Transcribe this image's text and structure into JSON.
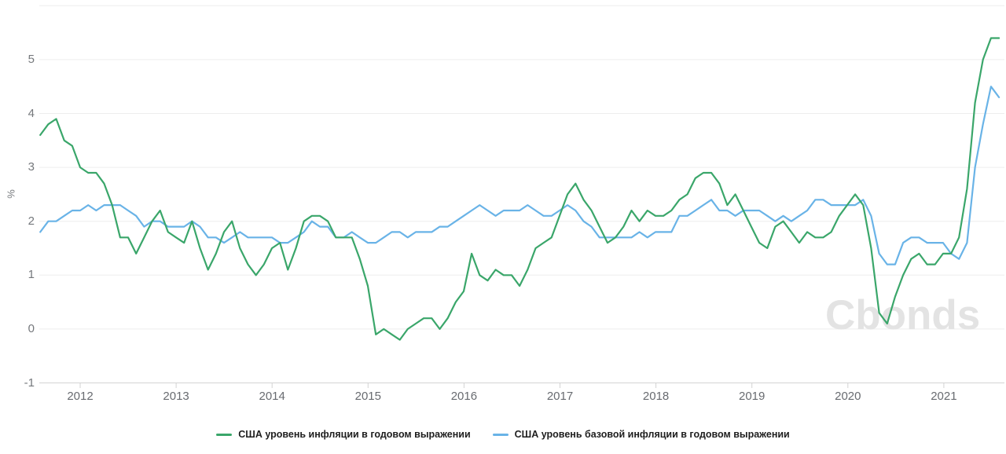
{
  "watermark": {
    "text": "Cbonds"
  },
  "legend": {
    "items": [
      {
        "label": "США уровень инфляции в годовом выражении",
        "color": "#3aa66a"
      },
      {
        "label": "США уровень базовой инфляции в годовом выражении",
        "color": "#69b3e7"
      }
    ]
  },
  "chart_data": {
    "type": "line",
    "title": "",
    "xlabel": "",
    "ylabel": "%",
    "x_frequency": "monthly",
    "x_start": "2011-07",
    "x_end": "2021-07",
    "x_tick_labels": [
      "2012",
      "2013",
      "2014",
      "2015",
      "2016",
      "2017",
      "2018",
      "2019",
      "2020",
      "2021"
    ],
    "y_ticks": [
      -1,
      0,
      1,
      2,
      3,
      4,
      5
    ],
    "ylim": [
      -1,
      6
    ],
    "grid": "horizontal",
    "legend_position": "bottom",
    "series": [
      {
        "name": "США уровень инфляции в годовом выражении",
        "color": "#3aa66a",
        "values": [
          3.6,
          3.8,
          3.9,
          3.5,
          3.4,
          3.0,
          2.9,
          2.9,
          2.7,
          2.3,
          1.7,
          1.7,
          1.4,
          1.7,
          2.0,
          2.2,
          1.8,
          1.7,
          1.6,
          2.0,
          1.5,
          1.1,
          1.4,
          1.8,
          2.0,
          1.5,
          1.2,
          1.0,
          1.2,
          1.5,
          1.6,
          1.1,
          1.5,
          2.0,
          2.1,
          2.1,
          2.0,
          1.7,
          1.7,
          1.7,
          1.3,
          0.8,
          -0.1,
          0.0,
          -0.1,
          -0.2,
          0.0,
          0.1,
          0.2,
          0.2,
          0.0,
          0.2,
          0.5,
          0.7,
          1.4,
          1.0,
          0.9,
          1.1,
          1.0,
          1.0,
          0.8,
          1.1,
          1.5,
          1.6,
          1.7,
          2.1,
          2.5,
          2.7,
          2.4,
          2.2,
          1.9,
          1.6,
          1.7,
          1.9,
          2.2,
          2.0,
          2.2,
          2.1,
          2.1,
          2.2,
          2.4,
          2.5,
          2.8,
          2.9,
          2.9,
          2.7,
          2.3,
          2.5,
          2.2,
          1.9,
          1.6,
          1.5,
          1.9,
          2.0,
          1.8,
          1.6,
          1.8,
          1.7,
          1.7,
          1.8,
          2.1,
          2.3,
          2.5,
          2.3,
          1.5,
          0.3,
          0.1,
          0.6,
          1.0,
          1.3,
          1.4,
          1.2,
          1.2,
          1.4,
          1.4,
          1.7,
          2.6,
          4.2,
          5.0,
          5.4,
          5.4
        ]
      },
      {
        "name": "США уровень базовой инфляции в годовом выражении",
        "color": "#69b3e7",
        "values": [
          1.8,
          2.0,
          2.0,
          2.1,
          2.2,
          2.2,
          2.3,
          2.2,
          2.3,
          2.3,
          2.3,
          2.2,
          2.1,
          1.9,
          2.0,
          2.0,
          1.9,
          1.9,
          1.9,
          2.0,
          1.9,
          1.7,
          1.7,
          1.6,
          1.7,
          1.8,
          1.7,
          1.7,
          1.7,
          1.7,
          1.6,
          1.6,
          1.7,
          1.8,
          2.0,
          1.9,
          1.9,
          1.7,
          1.7,
          1.8,
          1.7,
          1.6,
          1.6,
          1.7,
          1.8,
          1.8,
          1.7,
          1.8,
          1.8,
          1.8,
          1.9,
          1.9,
          2.0,
          2.1,
          2.2,
          2.3,
          2.2,
          2.1,
          2.2,
          2.2,
          2.2,
          2.3,
          2.2,
          2.1,
          2.1,
          2.2,
          2.3,
          2.2,
          2.0,
          1.9,
          1.7,
          1.7,
          1.7,
          1.7,
          1.7,
          1.8,
          1.7,
          1.8,
          1.8,
          1.8,
          2.1,
          2.1,
          2.2,
          2.3,
          2.4,
          2.2,
          2.2,
          2.1,
          2.2,
          2.2,
          2.2,
          2.1,
          2.0,
          2.1,
          2.0,
          2.1,
          2.2,
          2.4,
          2.4,
          2.3,
          2.3,
          2.3,
          2.3,
          2.4,
          2.1,
          1.4,
          1.2,
          1.2,
          1.6,
          1.7,
          1.7,
          1.6,
          1.6,
          1.6,
          1.4,
          1.3,
          1.6,
          3.0,
          3.8,
          4.5,
          4.3
        ]
      }
    ]
  }
}
